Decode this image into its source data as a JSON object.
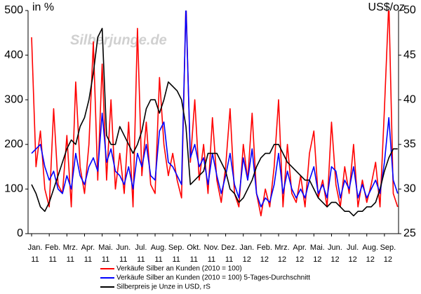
{
  "chart_data": {
    "type": "line",
    "watermark": "Silberjunge.de",
    "y_label": "in %",
    "y2_label": "US$/oz",
    "x": [
      0,
      0.25,
      0.5,
      0.75,
      1,
      1.25,
      1.5,
      1.75,
      2,
      2.25,
      2.5,
      2.75,
      3,
      3.25,
      3.5,
      3.75,
      4,
      4.25,
      4.5,
      4.75,
      5,
      5.25,
      5.5,
      5.75,
      6,
      6.25,
      6.5,
      6.75,
      7,
      7.25,
      7.5,
      7.75,
      8,
      8.25,
      8.5,
      8.75,
      9,
      9.25,
      9.5,
      9.75,
      10,
      10.25,
      10.5,
      10.75,
      11,
      11.25,
      11.5,
      11.75,
      12,
      12.25,
      12.5,
      12.75,
      13,
      13.25,
      13.5,
      13.75,
      14,
      14.25,
      14.5,
      14.75,
      15,
      15.25,
      15.5,
      15.75,
      16,
      16.25,
      16.5,
      16.75,
      17,
      17.25,
      17.5,
      17.75,
      18,
      18.25,
      18.5,
      18.75,
      19,
      19.25,
      19.5,
      19.75,
      20,
      20.25,
      20.5,
      20.75
    ],
    "xlim": [
      -0.2,
      20.8
    ],
    "xticks": [
      {
        "value": 0,
        "label": "Jan."
      },
      {
        "value": 1,
        "label": "Feb."
      },
      {
        "value": 2,
        "label": "Mrz."
      },
      {
        "value": 3,
        "label": "Apr."
      },
      {
        "value": 4,
        "label": "Mai."
      },
      {
        "value": 5,
        "label": "Jun."
      },
      {
        "value": 6,
        "label": "Jul."
      },
      {
        "value": 7,
        "label": "Aug."
      },
      {
        "value": 8,
        "label": "Sep."
      },
      {
        "value": 9,
        "label": "Okt."
      },
      {
        "value": 10,
        "label": "Nov."
      },
      {
        "value": 11,
        "label": "Dez."
      },
      {
        "value": 12,
        "label": "Jan."
      },
      {
        "value": 13,
        "label": "Feb."
      },
      {
        "value": 14,
        "label": "Mrz."
      },
      {
        "value": 15,
        "label": "Apr."
      },
      {
        "value": 16,
        "label": "Mai."
      },
      {
        "value": 17,
        "label": "Jun."
      },
      {
        "value": 18,
        "label": "Jul."
      },
      {
        "value": 19,
        "label": "Aug."
      },
      {
        "value": 20,
        "label": "Sep."
      }
    ],
    "xtick_years": [
      "11",
      "11",
      "11",
      "11",
      "11",
      "11",
      "11",
      "11",
      "11",
      "11",
      "11",
      "11",
      "12",
      "12",
      "12",
      "12",
      "12",
      "12",
      "12",
      "12",
      "12"
    ],
    "ylim": [
      0,
      500
    ],
    "yticks": [
      0,
      100,
      200,
      300,
      400,
      500
    ],
    "y2lim": [
      25,
      50
    ],
    "y2ticks": [
      25,
      30,
      35,
      40,
      45,
      50
    ],
    "series": [
      {
        "name": "Verkäufe Silber an Kunden (2010 = 100)",
        "color": "#ff0000",
        "values": [
          440,
          150,
          230,
          100,
          60,
          280,
          110,
          90,
          220,
          60,
          340,
          150,
          90,
          200,
          430,
          120,
          380,
          120,
          300,
          100,
          180,
          90,
          250,
          60,
          460,
          130,
          250,
          110,
          90,
          350,
          200,
          130,
          180,
          120,
          80,
          520,
          160,
          300,
          120,
          200,
          90,
          260,
          120,
          70,
          150,
          280,
          90,
          60,
          200,
          120,
          270,
          90,
          40,
          100,
          60,
          150,
          300,
          60,
          200,
          90,
          70,
          130,
          60,
          180,
          230,
          80,
          120,
          60,
          250,
          110,
          60,
          150,
          90,
          200,
          60,
          120,
          70,
          110,
          160,
          60,
          280,
          520,
          90,
          60
        ]
      },
      {
        "name": "Verkäufe Silber an Kunden (2010 = 100) 5-Tages-Durchschnitt",
        "color": "#0000ff",
        "values": [
          180,
          190,
          200,
          150,
          120,
          140,
          100,
          90,
          130,
          100,
          180,
          130,
          110,
          150,
          170,
          140,
          270,
          160,
          190,
          140,
          130,
          110,
          150,
          100,
          180,
          150,
          200,
          130,
          120,
          230,
          250,
          160,
          150,
          130,
          110,
          510,
          170,
          200,
          150,
          170,
          110,
          180,
          130,
          90,
          130,
          180,
          110,
          80,
          170,
          120,
          190,
          90,
          60,
          80,
          70,
          110,
          180,
          90,
          140,
          100,
          80,
          100,
          80,
          120,
          150,
          90,
          110,
          80,
          150,
          140,
          80,
          120,
          100,
          150,
          80,
          110,
          80,
          100,
          120,
          90,
          160,
          260,
          120,
          90
        ]
      },
      {
        "name": "Silberpreis je Unze in USD, rS",
        "color": "#000000",
        "axis": "y2",
        "values": [
          30.5,
          29.5,
          28,
          27.5,
          28.5,
          30,
          31.5,
          33,
          34.5,
          35.5,
          35,
          37,
          38,
          40,
          43,
          47,
          48,
          36,
          35,
          35,
          37,
          36,
          35,
          34,
          35,
          36.5,
          39,
          40,
          40,
          38.5,
          40,
          42,
          41.5,
          41,
          40,
          37,
          30.5,
          31,
          31.5,
          32,
          34,
          34,
          34,
          33,
          32,
          30,
          29.5,
          28.5,
          29,
          30,
          31,
          32.5,
          33.5,
          34,
          34,
          35,
          35,
          34,
          33,
          32.5,
          32,
          31.5,
          31,
          31,
          30,
          29,
          28.5,
          28,
          28.5,
          28.5,
          28,
          27.5,
          27.5,
          27,
          27.5,
          27.5,
          28,
          28,
          28.5,
          30,
          32,
          33.5,
          34.5,
          34.5
        ]
      }
    ]
  }
}
